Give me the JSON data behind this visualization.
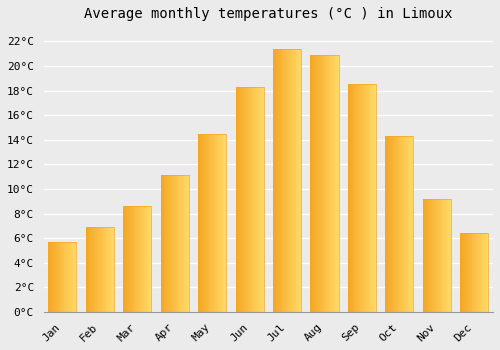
{
  "title": "Average monthly temperatures (°C ) in Limoux",
  "months": [
    "Jan",
    "Feb",
    "Mar",
    "Apr",
    "May",
    "Jun",
    "Jul",
    "Aug",
    "Sep",
    "Oct",
    "Nov",
    "Dec"
  ],
  "values": [
    5.7,
    6.9,
    8.6,
    11.1,
    14.5,
    18.3,
    21.4,
    20.9,
    18.5,
    14.3,
    9.2,
    6.4
  ],
  "bar_color_left": "#F5A623",
  "bar_color_right": "#FFD966",
  "background_color": "#EBEBEB",
  "grid_color": "#FFFFFF",
  "title_fontsize": 10,
  "tick_label_fontsize": 8,
  "ylim": [
    0,
    23
  ],
  "ytick_step": 2,
  "bar_width": 0.75
}
